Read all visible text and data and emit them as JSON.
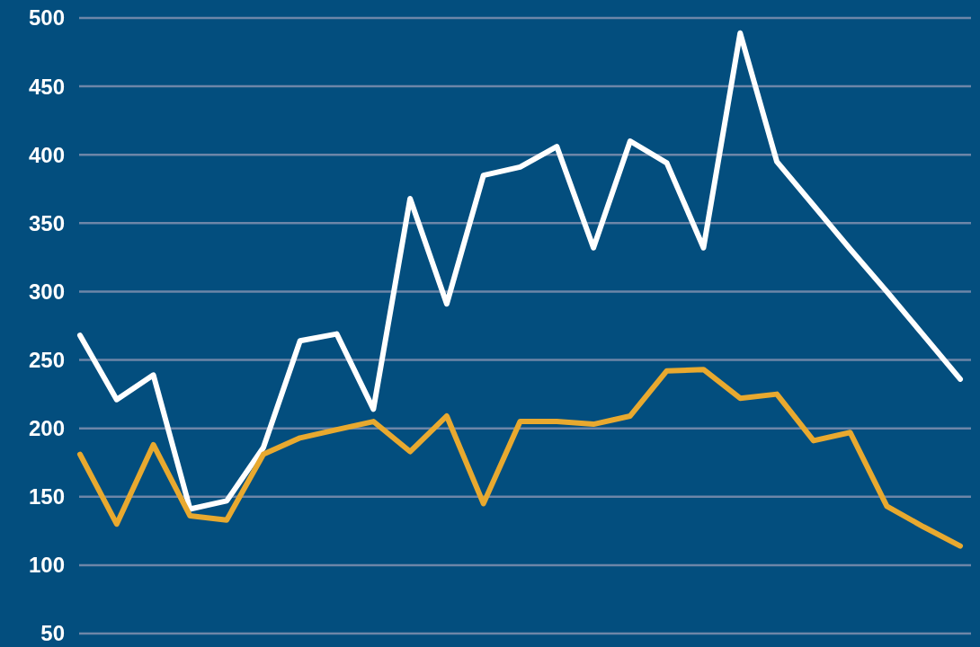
{
  "chart_data": {
    "type": "line",
    "categories": [
      null,
      null,
      null,
      null,
      null,
      null,
      null,
      null,
      null,
      null,
      null,
      null,
      null,
      null,
      null,
      null,
      null,
      null,
      null,
      null,
      null,
      null,
      null,
      null,
      null
    ],
    "series": [
      {
        "color": "#ffffff",
        "values": [
          268,
          221,
          239,
          141,
          147,
          186,
          264,
          269,
          214,
          368,
          291,
          385,
          391,
          406,
          332,
          410,
          394,
          332,
          489,
          395,
          363,
          331,
          300,
          268,
          236
        ]
      },
      {
        "color": "#e8a92f",
        "values": [
          181,
          130,
          188,
          136,
          133,
          181,
          193,
          199,
          205,
          183,
          209,
          145,
          205,
          205,
          203,
          209,
          242,
          243,
          222,
          225,
          191,
          197,
          143,
          128,
          114
        ]
      }
    ],
    "ylim": [
      50,
      500
    ],
    "yticks": [
      50,
      100,
      150,
      200,
      250,
      300,
      350,
      400,
      450,
      500
    ],
    "grid": "y",
    "tick_labels": "y",
    "marker": "none",
    "line_style": "solid"
  }
}
